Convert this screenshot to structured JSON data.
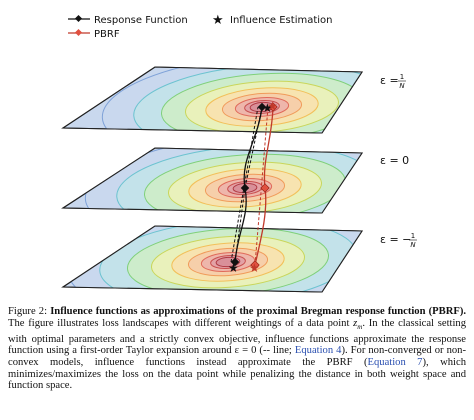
{
  "figure": {
    "legend": {
      "response": "Response Function",
      "influence": "Influence Estimation",
      "pbrf": "PBRF"
    },
    "planes": [
      {
        "prefix": "ε =",
        "numerator": "1",
        "denominator": "N"
      },
      {
        "prefix": "ε = 0"
      },
      {
        "prefix": "ε = −",
        "numerator": "1",
        "denominator": "N"
      }
    ]
  },
  "caption": {
    "label": "Figure 2:",
    "title": "Influence functions as approximations of the proximal Bregman response function (PBRF).",
    "body": [
      "The figure illustrates loss landscapes with different weightings of a data point",
      "z",
      "m",
      ". In the classical setting with optimal parameters and a strictly convex objective, influence functions approximate the response function using a first-order Taylor expansion around ε = 0 (",
      "--",
      " line; ",
      "Equation 4",
      "). For non-converged or non-convex models, influence functions instead approximate the PBRF (",
      "Equation 7",
      "), which minimizes/maximizes the loss on the data point while penalizing the distance in both weight space and function space."
    ]
  }
}
